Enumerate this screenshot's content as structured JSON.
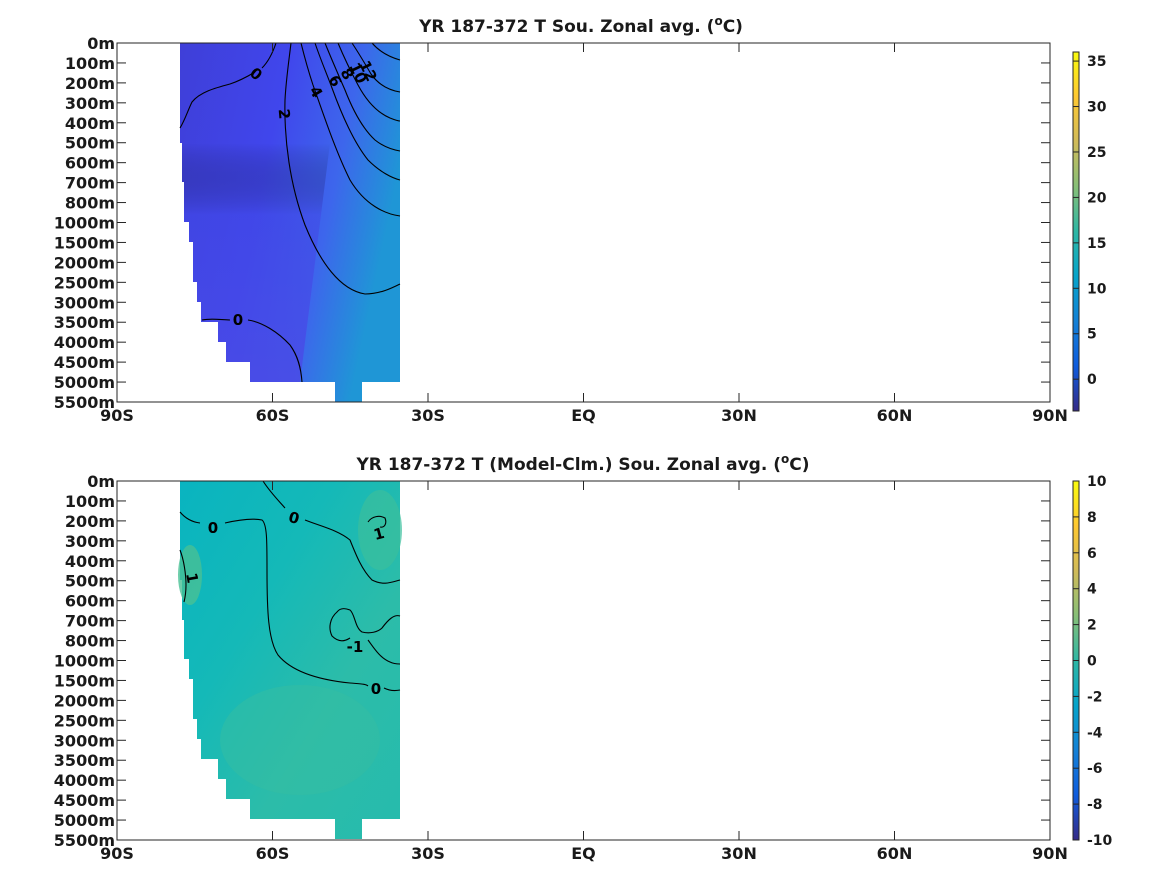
{
  "chart_data": [
    {
      "type": "heatmap",
      "title": "YR 187-372 T Sou. Zonal avg. (",
      "title_unit": "C)",
      "title_sup": "o",
      "x_ticks": [
        "90S",
        "60S",
        "30S",
        "EQ",
        "30N",
        "60N",
        "90N"
      ],
      "xlim": [
        -90,
        90
      ],
      "y_ticks": [
        "0m",
        "100m",
        "200m",
        "300m",
        "400m",
        "500m",
        "600m",
        "700m",
        "800m",
        "1000m",
        "1500m",
        "2000m",
        "2500m",
        "3000m",
        "3500m",
        "4000m",
        "4500m",
        "5000m",
        "5500m"
      ],
      "colorbar": {
        "min": -3.5,
        "max": 36,
        "ticks": [
          "35",
          "30",
          "25",
          "20",
          "15",
          "10",
          "5",
          "0"
        ],
        "tick_values": [
          35,
          30,
          25,
          20,
          15,
          10,
          5,
          0
        ]
      },
      "data_extent": {
        "lat_min": -77.5,
        "lat_max": -35,
        "depth_max": "5000m"
      },
      "contour_levels": [
        0,
        2,
        4,
        6,
        8,
        10,
        12
      ],
      "contour_labels": [
        "0",
        "2",
        "4",
        "6",
        "8",
        "10",
        "12",
        "0"
      ],
      "values": {
        "latitudes": [
          -77.5,
          -70,
          -60,
          -50,
          -40,
          -35
        ],
        "surface": [
          -2.0,
          -1.5,
          0.0,
          3.0,
          10.0,
          14.0
        ],
        "deep": [
          -0.5,
          -0.3,
          0.0,
          0.8,
          1.5,
          2.0
        ]
      }
    },
    {
      "type": "heatmap",
      "title": "YR 187-372 T (Model-Clm.) Sou. Zonal avg. (",
      "title_unit": "C)",
      "title_sup": "o",
      "x_ticks": [
        "90S",
        "60S",
        "30S",
        "EQ",
        "30N",
        "60N",
        "90N"
      ],
      "xlim": [
        -90,
        90
      ],
      "y_ticks": [
        "0m",
        "100m",
        "200m",
        "300m",
        "400m",
        "500m",
        "600m",
        "700m",
        "800m",
        "1000m",
        "1500m",
        "2000m",
        "2500m",
        "3000m",
        "3500m",
        "4000m",
        "4500m",
        "5000m",
        "5500m"
      ],
      "colorbar": {
        "min": -10,
        "max": 10,
        "ticks": [
          "10",
          "8",
          "6",
          "4",
          "2",
          "0",
          "-2",
          "-4",
          "-6",
          "-8",
          "-10"
        ],
        "tick_values": [
          10,
          8,
          6,
          4,
          2,
          0,
          -2,
          -4,
          -6,
          -8,
          -10
        ]
      },
      "data_extent": {
        "lat_min": -77.5,
        "lat_max": -35,
        "depth_max": "5000m"
      },
      "contour_levels": [
        -1,
        0,
        1
      ],
      "contour_labels": [
        "0",
        "0",
        "1",
        "1",
        "-1",
        "0"
      ],
      "values": {
        "shallow_bias": [
          -0.6,
          -0.4,
          -0.2,
          0.2,
          0.8,
          1.2
        ],
        "deep_bias": [
          0.6,
          0.5,
          0.4,
          0.3,
          0.2,
          0.1
        ]
      }
    }
  ],
  "colors": {
    "parula": [
      "#352a87",
      "#0f5cdd",
      "#1481d6",
      "#06a4ca",
      "#2eb7a4",
      "#87bf77",
      "#d1bb59",
      "#fec832",
      "#f9fb0e"
    ]
  }
}
